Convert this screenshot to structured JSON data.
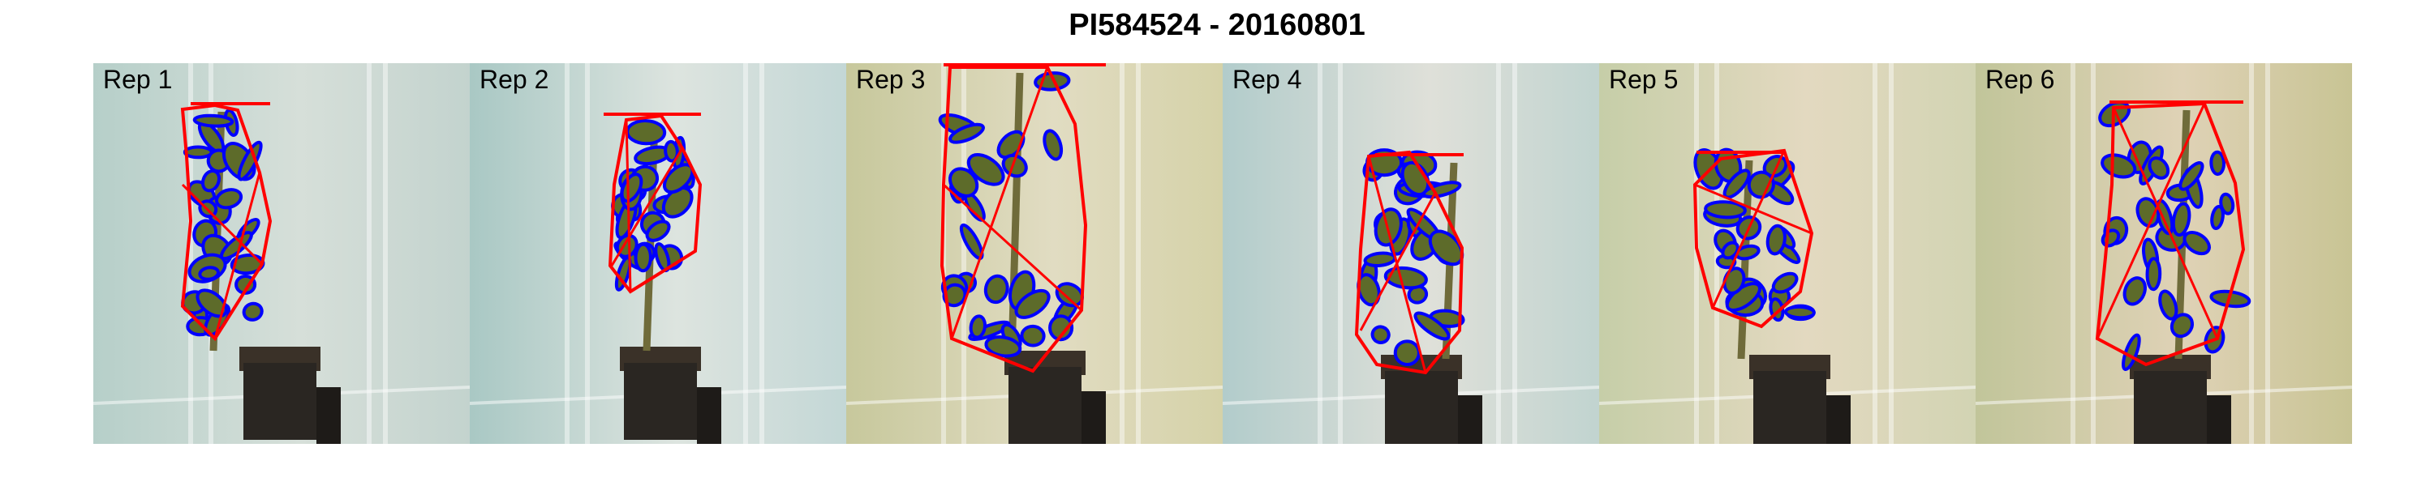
{
  "title": "PI584524 - 20160801",
  "panels": [
    {
      "label": "Rep 1",
      "bg_left": "#b6cfc9",
      "bg_mid": "#d6dfd9",
      "bg_right": "#c3d3ce"
    },
    {
      "label": "Rep 2",
      "bg_left": "#a9c8c4",
      "bg_mid": "#dde4df",
      "bg_right": "#c3d7d6"
    },
    {
      "label": "Rep 3",
      "bg_left": "#c7c89c",
      "bg_mid": "#e1dcc2",
      "bg_right": "#d5d2a8"
    },
    {
      "label": "Rep 4",
      "bg_left": "#b2cccb",
      "bg_mid": "#dfe0d9",
      "bg_right": "#c1d4d0"
    },
    {
      "label": "Rep 5",
      "bg_left": "#c6cea8",
      "bg_mid": "#e3d9c0",
      "bg_right": "#d2d4b3"
    },
    {
      "label": "Rep 6",
      "bg_left": "#c1c59a",
      "bg_mid": "#dfd2b6",
      "bg_right": "#c8c494"
    }
  ],
  "colors": {
    "hull": "#ff0000",
    "contour": "#0000ff",
    "leaf": "#5d6b2a",
    "pot": "#2a2622"
  }
}
